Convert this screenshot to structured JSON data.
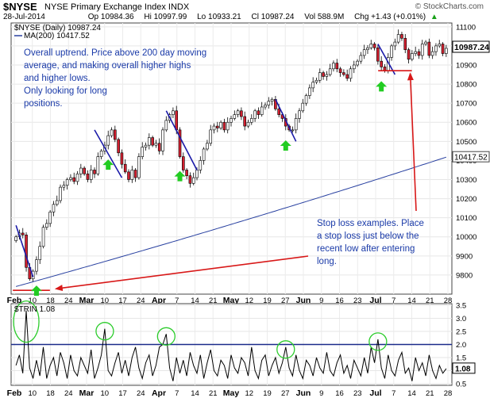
{
  "header": {
    "symbol": "$NYSE",
    "name": "NYSE Primary Exchange Index INDX",
    "site": "© StockCharts.com",
    "date": "28-Jul-2014",
    "op": "Op 10984.36",
    "hi": "Hi 10997.99",
    "lo": "Lo 10933.21",
    "cl": "Cl 10987.24",
    "vol": "Vol 588.9M",
    "chg": "Chg +1.43 (+0.01%)",
    "chg_arrow": "▲"
  },
  "legend": {
    "main": "$NYSE (Daily) 10987.24",
    "ma": "MA(200) 10417.52",
    "trin": "$TRIN 1.08"
  },
  "annotations": {
    "trend_lines": [
      "Overall uptrend. Price above 200 day moving",
      "average, and making overall higher highs",
      "and higher lows.",
      "Only looking for long",
      "positions."
    ],
    "stop_lines": [
      "Stop loss examples. Place",
      "a stop loss just below the",
      "recent low after entering",
      "long."
    ]
  },
  "colors": {
    "up_candle": "#ffffff",
    "down_candle": "#d32030",
    "ma_line": "#2840a0",
    "trend_line": "#1a1aa8",
    "annotation_text": "#1a3aa8",
    "arrow_red": "#d81818",
    "buy_arrow": "#22cc22",
    "trin_line": "#000000",
    "trin_level": "#1a2a8a",
    "circle": "#2ccc2c"
  },
  "chart_data": [
    {
      "type": "candlestick",
      "title": "$NYSE (Daily) 10987.24",
      "ylim": [
        9700,
        11120
      ],
      "yticks": [
        9800,
        9900,
        10000,
        10100,
        10200,
        10300,
        10400,
        10500,
        10600,
        10700,
        10800,
        10900,
        11000,
        11100
      ],
      "last_price_label": "10987.24",
      "ma_label": "10417.52",
      "xlabels": [
        "Feb",
        "10",
        "18",
        "24",
        "Mar",
        "10",
        "17",
        "24",
        "Apr",
        "7",
        "14",
        "21",
        "May",
        "12",
        "19",
        "27",
        "Jun",
        "9",
        "16",
        "23",
        "Jul",
        "7",
        "14",
        "21",
        "28"
      ],
      "closes": [
        10000,
        10020,
        10010,
        9840,
        9780,
        9820,
        9880,
        9950,
        10050,
        10070,
        10130,
        10170,
        10190,
        10260,
        10270,
        10300,
        10310,
        10290,
        10330,
        10360,
        10330,
        10300,
        10350,
        10330,
        10420,
        10450,
        10480,
        10530,
        10560,
        10510,
        10440,
        10380,
        10340,
        10300,
        10350,
        10310,
        10420,
        10470,
        10480,
        10520,
        10480,
        10490,
        10450,
        10560,
        10610,
        10640,
        10660,
        10560,
        10420,
        10350,
        10320,
        10280,
        10310,
        10350,
        10400,
        10460,
        10490,
        10560,
        10580,
        10570,
        10600,
        10560,
        10600,
        10620,
        10640,
        10660,
        10630,
        10580,
        10600,
        10620,
        10660,
        10640,
        10680,
        10690,
        10710,
        10720,
        10670,
        10640,
        10620,
        10580,
        10560,
        10560,
        10620,
        10660,
        10700,
        10740,
        10780,
        10810,
        10820,
        10860,
        10840,
        10850,
        10880,
        10910,
        10880,
        10860,
        10850,
        10830,
        10880,
        10900,
        10920,
        10950,
        10980,
        10990,
        11010,
        10990,
        10920,
        10890,
        10870,
        10940,
        11000,
        11020,
        11060,
        11040,
        10980,
        10930,
        10960,
        10970,
        10950,
        11010,
        11020,
        10950,
        10970,
        11000,
        11010,
        10960,
        10987.24
      ],
      "ma200": [
        9740,
        10417.52
      ],
      "trend_lines": [
        {
          "from": [
            0,
            10060
          ],
          "to": [
            5,
            9790
          ]
        },
        {
          "from": [
            23,
            10560
          ],
          "to": [
            31,
            10310
          ]
        },
        {
          "from": [
            44,
            10660
          ],
          "to": [
            53,
            10350
          ]
        },
        {
          "from": [
            76,
            10720
          ],
          "to": [
            82,
            10500
          ]
        },
        {
          "from": [
            106,
            11010
          ],
          "to": [
            111,
            10850
          ]
        }
      ],
      "buy_signals": [
        6,
        27,
        48,
        79,
        107
      ],
      "stop_levels": [
        {
          "from": [
            0,
            9720
          ],
          "to": [
            9,
            9720
          ]
        },
        {
          "from": [
            107,
            10870
          ],
          "to": [
            115,
            10870
          ]
        }
      ]
    },
    {
      "type": "line",
      "title": "$TRIN 1.08",
      "ylim": [
        0.5,
        3.5
      ],
      "yticks": [
        0.5,
        1.0,
        1.5,
        2.0,
        2.5,
        3.0,
        3.5
      ],
      "last_value_label": "1.08",
      "level": 2.0,
      "xlabels": [
        "Feb",
        "10",
        "18",
        "24",
        "Mar",
        "10",
        "17",
        "24",
        "Apr",
        "7",
        "14",
        "21",
        "May",
        "12",
        "19",
        "27",
        "Jun",
        "9",
        "16",
        "23",
        "Jul",
        "7",
        "14",
        "21",
        "28"
      ],
      "values": [
        1.2,
        1.6,
        0.9,
        3.3,
        1.1,
        0.7,
        1.4,
        0.8,
        1.9,
        0.7,
        1.2,
        1.5,
        0.8,
        1.7,
        1.3,
        0.7,
        1.6,
        1.0,
        0.8,
        1.5,
        1.2,
        0.9,
        1.8,
        0.7,
        1.1,
        1.6,
        2.6,
        1.0,
        0.8,
        1.3,
        1.7,
        0.9,
        1.4,
        0.8,
        1.5,
        1.9,
        1.1,
        0.7,
        1.3,
        1.6,
        0.8,
        1.2,
        1.9,
        2.0,
        2.4,
        1.1,
        0.6,
        1.5,
        0.9,
        1.4,
        0.8,
        1.7,
        1.2,
        0.9,
        1.6,
        0.7,
        1.3,
        1.8,
        1.0,
        0.8,
        1.4,
        1.2,
        0.7,
        1.6,
        1.1,
        0.9,
        1.5,
        1.3,
        0.8,
        1.9,
        1.0,
        0.7,
        1.4,
        1.6,
        0.8,
        1.2,
        1.5,
        0.9,
        1.3,
        1.9,
        1.1,
        0.8,
        1.6,
        1.0,
        0.7,
        1.4,
        1.2,
        0.8,
        1.5,
        1.1,
        0.9,
        1.7,
        1.0,
        0.8,
        1.3,
        1.6,
        0.9,
        1.2,
        0.7,
        1.4,
        1.1,
        0.8,
        1.5,
        0.9,
        1.9,
        1.3,
        2.2,
        1.1,
        0.7,
        1.6,
        1.0,
        0.8,
        1.4,
        1.7,
        0.9,
        1.1,
        0.6,
        1.5,
        1.0,
        1.3,
        0.8,
        1.6,
        1.0,
        0.7,
        1.2,
        0.9,
        1.08
      ],
      "circles": [
        3,
        26,
        44,
        79,
        106
      ]
    }
  ]
}
